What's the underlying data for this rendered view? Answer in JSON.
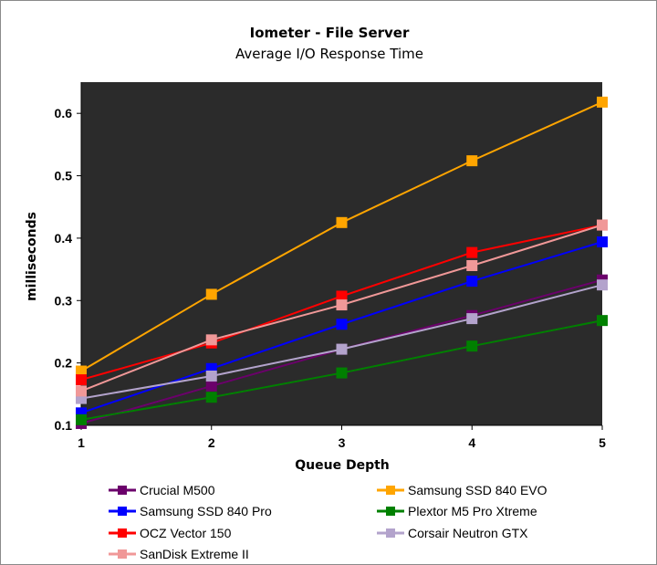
{
  "chart_data": {
    "type": "line",
    "title": "Iometer - File Server",
    "subtitle": "Average I/O Response Time",
    "xlabel": "Queue Depth",
    "ylabel": "milliseconds",
    "x": [
      1,
      2,
      3,
      4,
      5
    ],
    "xlim": [
      1,
      5
    ],
    "ylim": [
      0.1,
      0.65
    ],
    "yticks": [
      0.1,
      0.2,
      0.3,
      0.4,
      0.5,
      0.6
    ],
    "plot_background": "#2b2b2b",
    "grid": false,
    "legend_position": "bottom",
    "series": [
      {
        "name": "Crucial M500",
        "color": "#6b006b",
        "values": [
          0.103,
          0.163,
          0.222,
          0.276,
          0.333
        ]
      },
      {
        "name": "Samsung SSD 840 EVO",
        "color": "#ffa500",
        "values": [
          0.187,
          0.31,
          0.425,
          0.524,
          0.618
        ]
      },
      {
        "name": "Samsung SSD 840 Pro",
        "color": "#0000ff",
        "values": [
          0.12,
          0.191,
          0.262,
          0.331,
          0.394
        ]
      },
      {
        "name": "Plextor M5 Pro Xtreme",
        "color": "#008000",
        "values": [
          0.109,
          0.145,
          0.184,
          0.227,
          0.268
        ]
      },
      {
        "name": "OCZ Vector 150",
        "color": "#ff0000",
        "values": [
          0.173,
          0.232,
          0.307,
          0.377,
          0.421
        ]
      },
      {
        "name": "Corsair Neutron GTX",
        "color": "#b3a3cc",
        "values": [
          0.143,
          0.179,
          0.222,
          0.271,
          0.325
        ]
      },
      {
        "name": "SanDisk Extreme II",
        "color": "#f09898",
        "values": [
          0.155,
          0.237,
          0.293,
          0.356,
          0.421
        ]
      }
    ]
  }
}
